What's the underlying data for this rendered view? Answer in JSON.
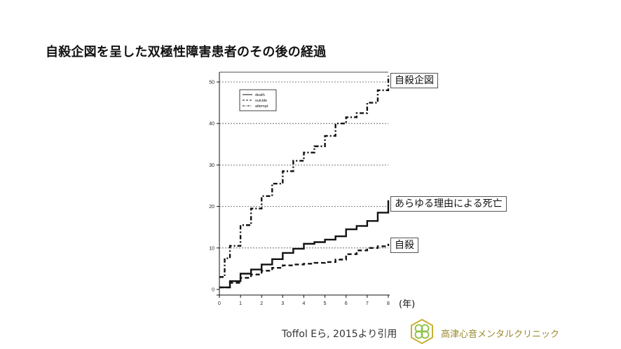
{
  "slide": {
    "title": "自殺企図を呈した双極性障害患者のその後の経過",
    "x_unit": "(年)",
    "citation": "Toffol Eら, 2015より引用",
    "clinic_name": "高津心音メンタルクリニック",
    "clinic_logo_icon": "clover-hexagon-logo-icon"
  },
  "callouts": {
    "attempt": "自殺企図",
    "death": "あらゆる理由による死亡",
    "suicide": "自殺"
  },
  "colors": {
    "line": "#111111",
    "grid": "#555555",
    "logo_gold": "#c9b034",
    "logo_green": "#8bbf3c"
  },
  "chart_data": {
    "type": "line",
    "xlim": [
      0,
      8
    ],
    "ylim": [
      0,
      50
    ],
    "x_ticks": [
      0,
      1,
      2,
      3,
      4,
      5,
      6,
      7,
      8
    ],
    "y_ticks": [
      0,
      10,
      20,
      30,
      40,
      50
    ],
    "gridlines": "horizontal dotted at y ticks",
    "legend_placement": "top-left",
    "series": [
      {
        "name": "death",
        "style": "solid",
        "x": [
          0,
          0.5,
          1,
          1.5,
          2,
          2.5,
          3,
          3.5,
          4,
          4.5,
          5,
          5.5,
          6,
          6.5,
          7,
          7.5,
          8
        ],
        "values": [
          0.5,
          2,
          3.8,
          4.8,
          6,
          7.3,
          8.8,
          9.8,
          11,
          11.4,
          12,
          12.8,
          14.5,
          15.3,
          16.5,
          18.5,
          21.5
        ]
      },
      {
        "name": "suicide",
        "style": "dashed",
        "x": [
          0,
          0.5,
          1,
          1.5,
          2,
          2.5,
          3,
          3.5,
          4,
          4.5,
          5,
          5.5,
          6,
          6.5,
          7,
          7.5,
          8
        ],
        "values": [
          0.5,
          1.6,
          2.8,
          3.6,
          4.5,
          5.2,
          5.8,
          6,
          6.2,
          6.4,
          6.6,
          7.2,
          8.5,
          9.4,
          10,
          10.4,
          11
        ]
      },
      {
        "name": "attempt",
        "style": "dash-dot",
        "x": [
          0,
          0.25,
          0.5,
          1,
          1.5,
          2,
          2.5,
          3,
          3.5,
          4,
          4.5,
          5,
          5.5,
          6,
          6.5,
          7,
          7.5,
          8
        ],
        "values": [
          3,
          7.5,
          10.5,
          15.5,
          19.5,
          22.5,
          25.5,
          28.5,
          31,
          33,
          34.5,
          37,
          40,
          41.5,
          42.5,
          45,
          48,
          51.5
        ]
      }
    ]
  }
}
